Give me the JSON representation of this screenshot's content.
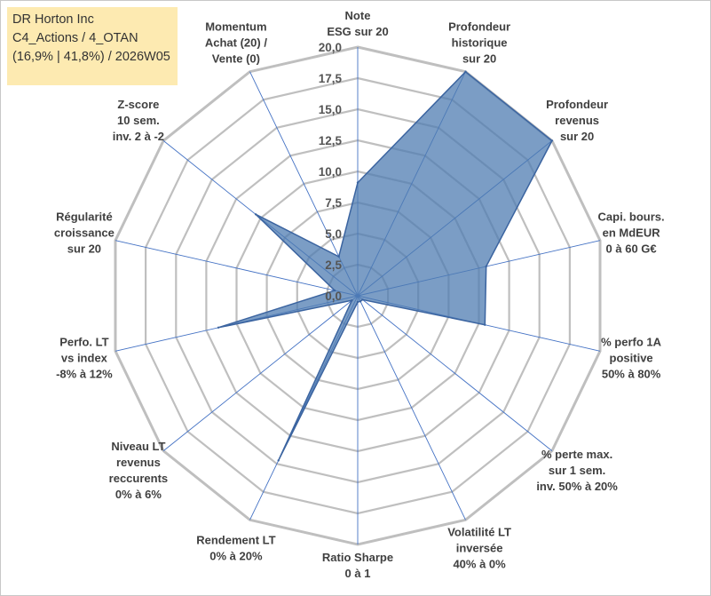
{
  "title_box": {
    "line1": "DR Horton Inc",
    "line2": "C4_Actions / 4_OTAN",
    "line3": "(16,9% | 41,8%) / 2026W05",
    "background": "#fdeab1"
  },
  "chart_data": {
    "type": "radar",
    "rmax": 20,
    "ticks": [
      "0,0",
      "2,5",
      "5,0",
      "7,5",
      "10,0",
      "12,5",
      "15,0",
      "17,5",
      "20,0"
    ],
    "tick_values": [
      0,
      2.5,
      5,
      7.5,
      10,
      12.5,
      15,
      17.5,
      20
    ],
    "axes": [
      {
        "lines": [
          "Note",
          "ESG sur 20"
        ]
      },
      {
        "lines": [
          "Profondeur",
          "historique",
          "sur 20"
        ]
      },
      {
        "lines": [
          "Profondeur",
          "revenus",
          "sur 20"
        ]
      },
      {
        "lines": [
          "Capi. bours.",
          "en MdEUR",
          "0 à 60 G€"
        ]
      },
      {
        "lines": [
          "% perfo 1A",
          "positive",
          "50% à 80%"
        ]
      },
      {
        "lines": [
          "% perte max.",
          "sur 1 sem.",
          "inv. 50% à 20%"
        ]
      },
      {
        "lines": [
          "Volatilité LT",
          "inversée",
          "40% à 0%"
        ]
      },
      {
        "lines": [
          "Ratio Sharpe",
          "0 à 1"
        ]
      },
      {
        "lines": [
          "Rendement LT",
          "0% à 20%"
        ]
      },
      {
        "lines": [
          "Niveau LT",
          "revenus",
          "reccurents",
          "0% à 6%"
        ]
      },
      {
        "lines": [
          "Perfo. LT",
          "vs index",
          "-8% à 12%"
        ]
      },
      {
        "lines": [
          "Régularité",
          "croissance",
          "sur 20"
        ]
      },
      {
        "lines": [
          "Z-score",
          "10 sem.",
          "inv. 2 à -2"
        ]
      },
      {
        "lines": [
          "Momentum",
          "Achat (20) /",
          "Vente (0)"
        ]
      }
    ],
    "series": [
      {
        "name": "DR Horton Inc",
        "values": [
          9.1,
          20.0,
          20.0,
          10.6,
          10.5,
          0.5,
          0.5,
          0.5,
          14.7,
          0.6,
          11.5,
          1.9,
          10.5,
          3.5
        ],
        "fill": "#4f7cb2",
        "fill_opacity": 0.75,
        "stroke": "#3b64a0"
      }
    ],
    "grid_color": "#bfbfbf",
    "spoke_color": "#4472c4"
  }
}
